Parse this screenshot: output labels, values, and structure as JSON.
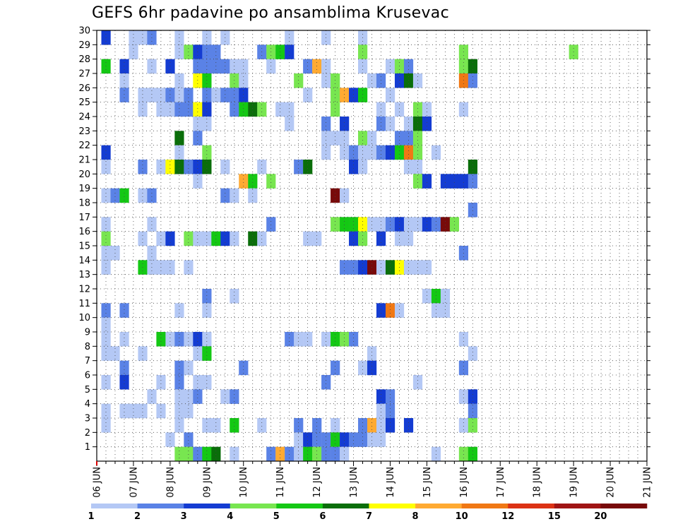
{
  "chart_data": {
    "type": "heatmap",
    "title": "GEFS 6hr padavine po ansamblima Krusevac",
    "x_ticks": [
      "06 JUN",
      "07 JUN",
      "08 JUN",
      "09 JUN",
      "10 JUN",
      "11 JUN",
      "12 JUN",
      "13 JUN",
      "14 JUN",
      "15 JUN",
      "16 JUN",
      "17 JUN",
      "18 JUN",
      "19 JUN",
      "20 JUN",
      "21 JUN"
    ],
    "y_ticks": [
      "1",
      "2",
      "3",
      "4",
      "5",
      "6",
      "7",
      "8",
      "9",
      "10",
      "11",
      "12",
      "13",
      "14",
      "15",
      "16",
      "17",
      "18",
      "19",
      "20",
      "21",
      "22",
      "23",
      "24",
      "25",
      "26",
      "27",
      "28",
      "29",
      "30"
    ],
    "time_steps": 60,
    "members": 30,
    "legend": {
      "labels": [
        "1",
        "2",
        "3",
        "4",
        "5",
        "6",
        "7",
        "8",
        "10",
        "12",
        "15",
        "20"
      ],
      "colors": [
        "#b4c8f5",
        "#5a82e6",
        "#143cd2",
        "#78e650",
        "#14c814",
        "#0a6e0a",
        "#ffff00",
        "#ffaa32",
        "#f07814",
        "#dc3214",
        "#a01414",
        "#780a0a"
      ]
    },
    "cells": [
      [
        30,
        1,
        3
      ],
      [
        30,
        4,
        1
      ],
      [
        30,
        5,
        1
      ],
      [
        30,
        6,
        2
      ],
      [
        30,
        9,
        1
      ],
      [
        30,
        12,
        1
      ],
      [
        30,
        14,
        1
      ],
      [
        30,
        21,
        1
      ],
      [
        30,
        25,
        1
      ],
      [
        30,
        29,
        1
      ],
      [
        29,
        4,
        1
      ],
      [
        29,
        9,
        1
      ],
      [
        29,
        10,
        4
      ],
      [
        29,
        11,
        3
      ],
      [
        29,
        12,
        2
      ],
      [
        29,
        13,
        2
      ],
      [
        29,
        18,
        2
      ],
      [
        29,
        19,
        4
      ],
      [
        29,
        20,
        5
      ],
      [
        29,
        21,
        3
      ],
      [
        29,
        29,
        4
      ],
      [
        29,
        40,
        4
      ],
      [
        29,
        52,
        4
      ],
      [
        28,
        1,
        5
      ],
      [
        28,
        3,
        3
      ],
      [
        28,
        6,
        1
      ],
      [
        28,
        8,
        3
      ],
      [
        28,
        11,
        2
      ],
      [
        28,
        12,
        2
      ],
      [
        28,
        13,
        2
      ],
      [
        28,
        14,
        2
      ],
      [
        28,
        15,
        1
      ],
      [
        28,
        16,
        1
      ],
      [
        28,
        19,
        1
      ],
      [
        28,
        23,
        2
      ],
      [
        28,
        24,
        8
      ],
      [
        28,
        25,
        1
      ],
      [
        28,
        29,
        1
      ],
      [
        28,
        32,
        1
      ],
      [
        28,
        33,
        4
      ],
      [
        28,
        34,
        2
      ],
      [
        28,
        40,
        4
      ],
      [
        28,
        41,
        6
      ],
      [
        27,
        3,
        1
      ],
      [
        27,
        9,
        1
      ],
      [
        27,
        11,
        7
      ],
      [
        27,
        12,
        5
      ],
      [
        27,
        15,
        4
      ],
      [
        27,
        16,
        1
      ],
      [
        27,
        22,
        4
      ],
      [
        27,
        25,
        1
      ],
      [
        27,
        26,
        4
      ],
      [
        27,
        30,
        1
      ],
      [
        27,
        31,
        2
      ],
      [
        27,
        33,
        3
      ],
      [
        27,
        34,
        6
      ],
      [
        27,
        35,
        1
      ],
      [
        27,
        40,
        9
      ],
      [
        27,
        41,
        2
      ],
      [
        26,
        3,
        2
      ],
      [
        26,
        5,
        1
      ],
      [
        26,
        6,
        1
      ],
      [
        26,
        7,
        1
      ],
      [
        26,
        8,
        2
      ],
      [
        26,
        9,
        1
      ],
      [
        26,
        10,
        2
      ],
      [
        26,
        12,
        2
      ],
      [
        26,
        13,
        1
      ],
      [
        26,
        14,
        2
      ],
      [
        26,
        15,
        2
      ],
      [
        26,
        16,
        3
      ],
      [
        26,
        23,
        1
      ],
      [
        26,
        26,
        4
      ],
      [
        26,
        27,
        8
      ],
      [
        26,
        28,
        3
      ],
      [
        26,
        29,
        5
      ],
      [
        26,
        32,
        1
      ],
      [
        25,
        5,
        1
      ],
      [
        25,
        7,
        1
      ],
      [
        25,
        8,
        1
      ],
      [
        25,
        9,
        2
      ],
      [
        25,
        10,
        2
      ],
      [
        25,
        11,
        7
      ],
      [
        25,
        12,
        3
      ],
      [
        25,
        15,
        2
      ],
      [
        25,
        16,
        5
      ],
      [
        25,
        17,
        6
      ],
      [
        25,
        18,
        4
      ],
      [
        25,
        20,
        1
      ],
      [
        25,
        21,
        1
      ],
      [
        25,
        26,
        4
      ],
      [
        25,
        31,
        1
      ],
      [
        25,
        33,
        1
      ],
      [
        25,
        35,
        4
      ],
      [
        25,
        36,
        1
      ],
      [
        25,
        40,
        1
      ],
      [
        24,
        11,
        1
      ],
      [
        24,
        12,
        1
      ],
      [
        24,
        21,
        1
      ],
      [
        24,
        25,
        2
      ],
      [
        24,
        27,
        3
      ],
      [
        24,
        31,
        2
      ],
      [
        24,
        32,
        1
      ],
      [
        24,
        34,
        1
      ],
      [
        24,
        35,
        6
      ],
      [
        24,
        36,
        3
      ],
      [
        23,
        9,
        6
      ],
      [
        23,
        11,
        2
      ],
      [
        23,
        25,
        1
      ],
      [
        23,
        26,
        1
      ],
      [
        23,
        27,
        1
      ],
      [
        23,
        29,
        4
      ],
      [
        23,
        30,
        1
      ],
      [
        23,
        33,
        2
      ],
      [
        23,
        34,
        2
      ],
      [
        23,
        35,
        4
      ],
      [
        22,
        1,
        3
      ],
      [
        22,
        9,
        1
      ],
      [
        22,
        12,
        4
      ],
      [
        22,
        25,
        1
      ],
      [
        22,
        27,
        1
      ],
      [
        22,
        28,
        2
      ],
      [
        22,
        29,
        1
      ],
      [
        22,
        30,
        1
      ],
      [
        22,
        31,
        2
      ],
      [
        22,
        32,
        3
      ],
      [
        22,
        33,
        5
      ],
      [
        22,
        34,
        9
      ],
      [
        22,
        35,
        4
      ],
      [
        22,
        37,
        1
      ],
      [
        21,
        1,
        1
      ],
      [
        21,
        5,
        2
      ],
      [
        21,
        7,
        1
      ],
      [
        21,
        8,
        7
      ],
      [
        21,
        9,
        6
      ],
      [
        21,
        10,
        2
      ],
      [
        21,
        11,
        3
      ],
      [
        21,
        12,
        6
      ],
      [
        21,
        14,
        1
      ],
      [
        21,
        18,
        1
      ],
      [
        21,
        22,
        2
      ],
      [
        21,
        23,
        6
      ],
      [
        21,
        28,
        3
      ],
      [
        21,
        29,
        1
      ],
      [
        21,
        34,
        1
      ],
      [
        21,
        35,
        1
      ],
      [
        21,
        41,
        6
      ],
      [
        20,
        11,
        1
      ],
      [
        20,
        16,
        8
      ],
      [
        20,
        17,
        5
      ],
      [
        20,
        19,
        4
      ],
      [
        20,
        35,
        4
      ],
      [
        20,
        36,
        3
      ],
      [
        20,
        38,
        3
      ],
      [
        20,
        39,
        3
      ],
      [
        20,
        40,
        3
      ],
      [
        20,
        41,
        2
      ],
      [
        19,
        1,
        1
      ],
      [
        19,
        2,
        2
      ],
      [
        19,
        3,
        5
      ],
      [
        19,
        5,
        1
      ],
      [
        19,
        6,
        2
      ],
      [
        19,
        14,
        2
      ],
      [
        19,
        15,
        1
      ],
      [
        19,
        17,
        1
      ],
      [
        19,
        26,
        12
      ],
      [
        19,
        27,
        1
      ],
      [
        18,
        41,
        2
      ],
      [
        17,
        1,
        1
      ],
      [
        17,
        6,
        1
      ],
      [
        17,
        19,
        2
      ],
      [
        17,
        26,
        4
      ],
      [
        17,
        27,
        5
      ],
      [
        17,
        28,
        5
      ],
      [
        17,
        29,
        7
      ],
      [
        17,
        30,
        1
      ],
      [
        17,
        31,
        1
      ],
      [
        17,
        32,
        2
      ],
      [
        17,
        33,
        3
      ],
      [
        17,
        34,
        1
      ],
      [
        17,
        35,
        1
      ],
      [
        17,
        36,
        3
      ],
      [
        17,
        37,
        2
      ],
      [
        17,
        38,
        12
      ],
      [
        17,
        39,
        4
      ],
      [
        16,
        1,
        4
      ],
      [
        16,
        5,
        1
      ],
      [
        16,
        7,
        1
      ],
      [
        16,
        8,
        3
      ],
      [
        16,
        10,
        4
      ],
      [
        16,
        11,
        1
      ],
      [
        16,
        12,
        1
      ],
      [
        16,
        13,
        5
      ],
      [
        16,
        14,
        3
      ],
      [
        16,
        15,
        1
      ],
      [
        16,
        17,
        6
      ],
      [
        16,
        18,
        1
      ],
      [
        16,
        23,
        1
      ],
      [
        16,
        24,
        1
      ],
      [
        16,
        28,
        3
      ],
      [
        16,
        29,
        4
      ],
      [
        16,
        31,
        3
      ],
      [
        16,
        33,
        1
      ],
      [
        16,
        34,
        1
      ],
      [
        15,
        1,
        1
      ],
      [
        15,
        2,
        1
      ],
      [
        15,
        6,
        1
      ],
      [
        15,
        40,
        2
      ],
      [
        14,
        1,
        1
      ],
      [
        14,
        5,
        5
      ],
      [
        14,
        6,
        1
      ],
      [
        14,
        7,
        1
      ],
      [
        14,
        8,
        1
      ],
      [
        14,
        10,
        1
      ],
      [
        14,
        27,
        2
      ],
      [
        14,
        28,
        2
      ],
      [
        14,
        29,
        3
      ],
      [
        14,
        30,
        12
      ],
      [
        14,
        31,
        1
      ],
      [
        14,
        32,
        6
      ],
      [
        14,
        33,
        7
      ],
      [
        14,
        34,
        1
      ],
      [
        14,
        35,
        1
      ],
      [
        14,
        36,
        1
      ],
      [
        12,
        12,
        2
      ],
      [
        12,
        15,
        1
      ],
      [
        12,
        36,
        1
      ],
      [
        12,
        37,
        5
      ],
      [
        12,
        38,
        1
      ],
      [
        11,
        1,
        2
      ],
      [
        11,
        3,
        2
      ],
      [
        11,
        9,
        1
      ],
      [
        11,
        12,
        1
      ],
      [
        11,
        31,
        3
      ],
      [
        11,
        32,
        9
      ],
      [
        11,
        33,
        1
      ],
      [
        11,
        37,
        1
      ],
      [
        11,
        38,
        1
      ],
      [
        10,
        1,
        1
      ],
      [
        9,
        1,
        1
      ],
      [
        9,
        3,
        1
      ],
      [
        9,
        7,
        5
      ],
      [
        9,
        8,
        1
      ],
      [
        9,
        9,
        2
      ],
      [
        9,
        10,
        1
      ],
      [
        9,
        11,
        3
      ],
      [
        9,
        12,
        1
      ],
      [
        9,
        21,
        2
      ],
      [
        9,
        22,
        1
      ],
      [
        9,
        23,
        1
      ],
      [
        9,
        25,
        1
      ],
      [
        9,
        26,
        5
      ],
      [
        9,
        27,
        4
      ],
      [
        9,
        28,
        2
      ],
      [
        9,
        40,
        1
      ],
      [
        8,
        1,
        1
      ],
      [
        8,
        2,
        1
      ],
      [
        8,
        5,
        1
      ],
      [
        8,
        11,
        1
      ],
      [
        8,
        12,
        5
      ],
      [
        8,
        30,
        1
      ],
      [
        8,
        41,
        1
      ],
      [
        7,
        3,
        2
      ],
      [
        7,
        9,
        2
      ],
      [
        7,
        10,
        1
      ],
      [
        7,
        16,
        2
      ],
      [
        7,
        26,
        2
      ],
      [
        7,
        29,
        1
      ],
      [
        7,
        30,
        3
      ],
      [
        7,
        40,
        2
      ],
      [
        6,
        1,
        1
      ],
      [
        6,
        3,
        3
      ],
      [
        6,
        7,
        1
      ],
      [
        6,
        9,
        2
      ],
      [
        6,
        11,
        1
      ],
      [
        6,
        12,
        1
      ],
      [
        6,
        25,
        2
      ],
      [
        6,
        35,
        1
      ],
      [
        5,
        6,
        1
      ],
      [
        5,
        9,
        1
      ],
      [
        5,
        10,
        1
      ],
      [
        5,
        11,
        2
      ],
      [
        5,
        14,
        1
      ],
      [
        5,
        15,
        2
      ],
      [
        5,
        31,
        3
      ],
      [
        5,
        32,
        2
      ],
      [
        5,
        40,
        1
      ],
      [
        5,
        41,
        3
      ],
      [
        4,
        1,
        1
      ],
      [
        4,
        3,
        1
      ],
      [
        4,
        4,
        1
      ],
      [
        4,
        5,
        1
      ],
      [
        4,
        7,
        1
      ],
      [
        4,
        9,
        1
      ],
      [
        4,
        10,
        1
      ],
      [
        4,
        31,
        1
      ],
      [
        4,
        32,
        2
      ],
      [
        4,
        41,
        2
      ],
      [
        3,
        1,
        1
      ],
      [
        3,
        9,
        1
      ],
      [
        3,
        12,
        1
      ],
      [
        3,
        13,
        1
      ],
      [
        3,
        15,
        5
      ],
      [
        3,
        18,
        1
      ],
      [
        3,
        22,
        2
      ],
      [
        3,
        24,
        2
      ],
      [
        3,
        26,
        1
      ],
      [
        3,
        29,
        2
      ],
      [
        3,
        30,
        8
      ],
      [
        3,
        31,
        1
      ],
      [
        3,
        32,
        3
      ],
      [
        3,
        34,
        3
      ],
      [
        3,
        40,
        1
      ],
      [
        3,
        41,
        4
      ],
      [
        2,
        8,
        1
      ],
      [
        2,
        10,
        2
      ],
      [
        2,
        22,
        1
      ],
      [
        2,
        23,
        3
      ],
      [
        2,
        24,
        2
      ],
      [
        2,
        25,
        2
      ],
      [
        2,
        26,
        5
      ],
      [
        2,
        27,
        3
      ],
      [
        2,
        28,
        2
      ],
      [
        2,
        29,
        2
      ],
      [
        2,
        30,
        1
      ],
      [
        2,
        31,
        1
      ],
      [
        1,
        9,
        4
      ],
      [
        1,
        10,
        4
      ],
      [
        1,
        11,
        2
      ],
      [
        1,
        12,
        5
      ],
      [
        1,
        13,
        6
      ],
      [
        1,
        15,
        1
      ],
      [
        1,
        19,
        2
      ],
      [
        1,
        20,
        8
      ],
      [
        1,
        21,
        2
      ],
      [
        1,
        22,
        1
      ],
      [
        1,
        23,
        5
      ],
      [
        1,
        24,
        4
      ],
      [
        1,
        25,
        2
      ],
      [
        1,
        26,
        2
      ],
      [
        1,
        27,
        1
      ],
      [
        1,
        37,
        1
      ],
      [
        1,
        40,
        4
      ],
      [
        1,
        41,
        5
      ]
    ]
  }
}
